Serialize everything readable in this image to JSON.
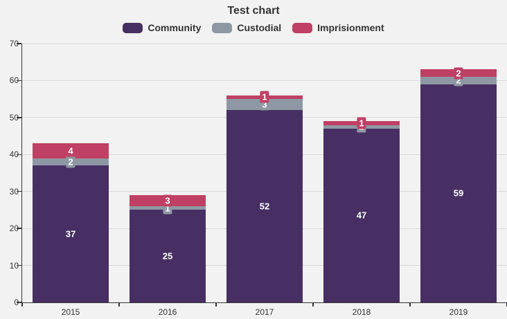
{
  "title": "Test chart",
  "colors": {
    "background": "#f2f2f2",
    "gridline": "#d8d8d8",
    "axis": "#333333",
    "text": "#333333",
    "value_label_text": "#ffffff"
  },
  "chart_data": {
    "type": "bar",
    "stacked": true,
    "title": "Test chart",
    "categories": [
      "2015",
      "2016",
      "2017",
      "2018",
      "2019"
    ],
    "series": [
      {
        "name": "Community",
        "color": "#472f63",
        "values": [
          37,
          25,
          52,
          47,
          59
        ]
      },
      {
        "name": "Custodial",
        "color": "#8e98a4",
        "values": [
          2,
          1,
          3,
          1,
          2
        ]
      },
      {
        "name": "Imprisionment",
        "color": "#c03f64",
        "values": [
          4,
          3,
          1,
          1,
          2
        ]
      }
    ],
    "xlabel": "",
    "ylabel": "",
    "ylim": [
      0,
      70
    ],
    "yticks": [
      0,
      10,
      20,
      30,
      40,
      50,
      60,
      70
    ],
    "grid": "horizontal",
    "legend_position": "top",
    "value_labels": "white bold, pill background in segment color"
  }
}
